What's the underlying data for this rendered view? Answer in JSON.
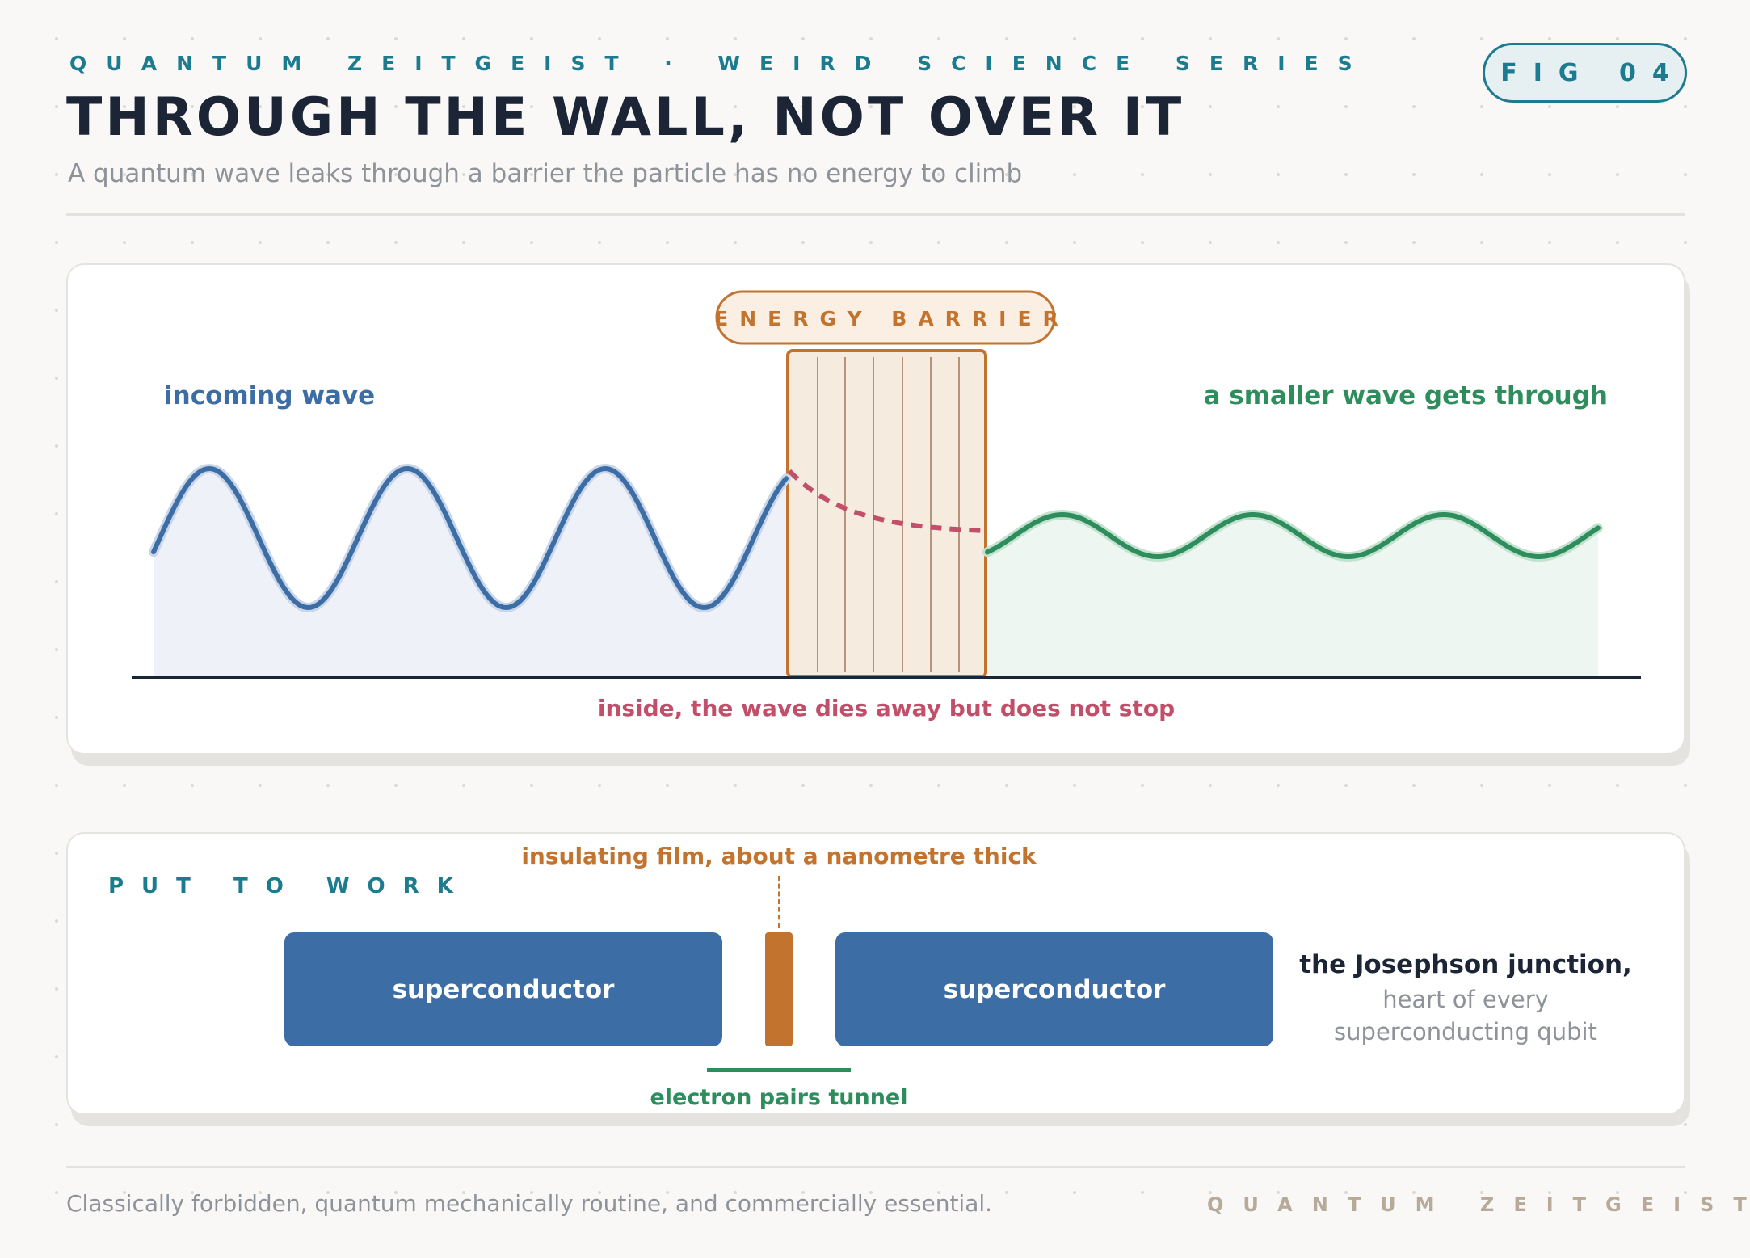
{
  "header": {
    "series": "QUANTUM ZEITGEIST · WEIRD SCIENCE SERIES",
    "title": "THROUGH THE WALL, NOT OVER IT",
    "subtitle": "A quantum wave leaks through a barrier the particle has no energy to climb",
    "figure_badge": "FIG 04"
  },
  "tunnelling_diagram": {
    "barrier_label": "ENERGY BARRIER",
    "incoming_label": "incoming wave",
    "transmitted_label": "a smaller wave gets through",
    "inside_label": "inside, the wave dies away but does not stop"
  },
  "application": {
    "section_label": "PUT TO WORK",
    "film_label": "insulating film, about a nanometre thick",
    "left_block": "superconductor",
    "right_block": "superconductor",
    "tunnel_label": "electron pairs tunnel",
    "junction_title": "the Josephson junction,",
    "junction_line1": "heart of every",
    "junction_line2": "superconducting qubit"
  },
  "footer": {
    "note": "Classically forbidden, quantum mechanically routine, and commercially essential.",
    "brand": "QUANTUM ZEITGEIST"
  },
  "colors": {
    "teal": "#1c7b8f",
    "navy": "#1b2535",
    "incoming_blue": "#3c6ea5",
    "transmitted_green": "#2e8d5c",
    "decay_pink": "#c24f6a",
    "barrier_orange": "#c2732e"
  }
}
